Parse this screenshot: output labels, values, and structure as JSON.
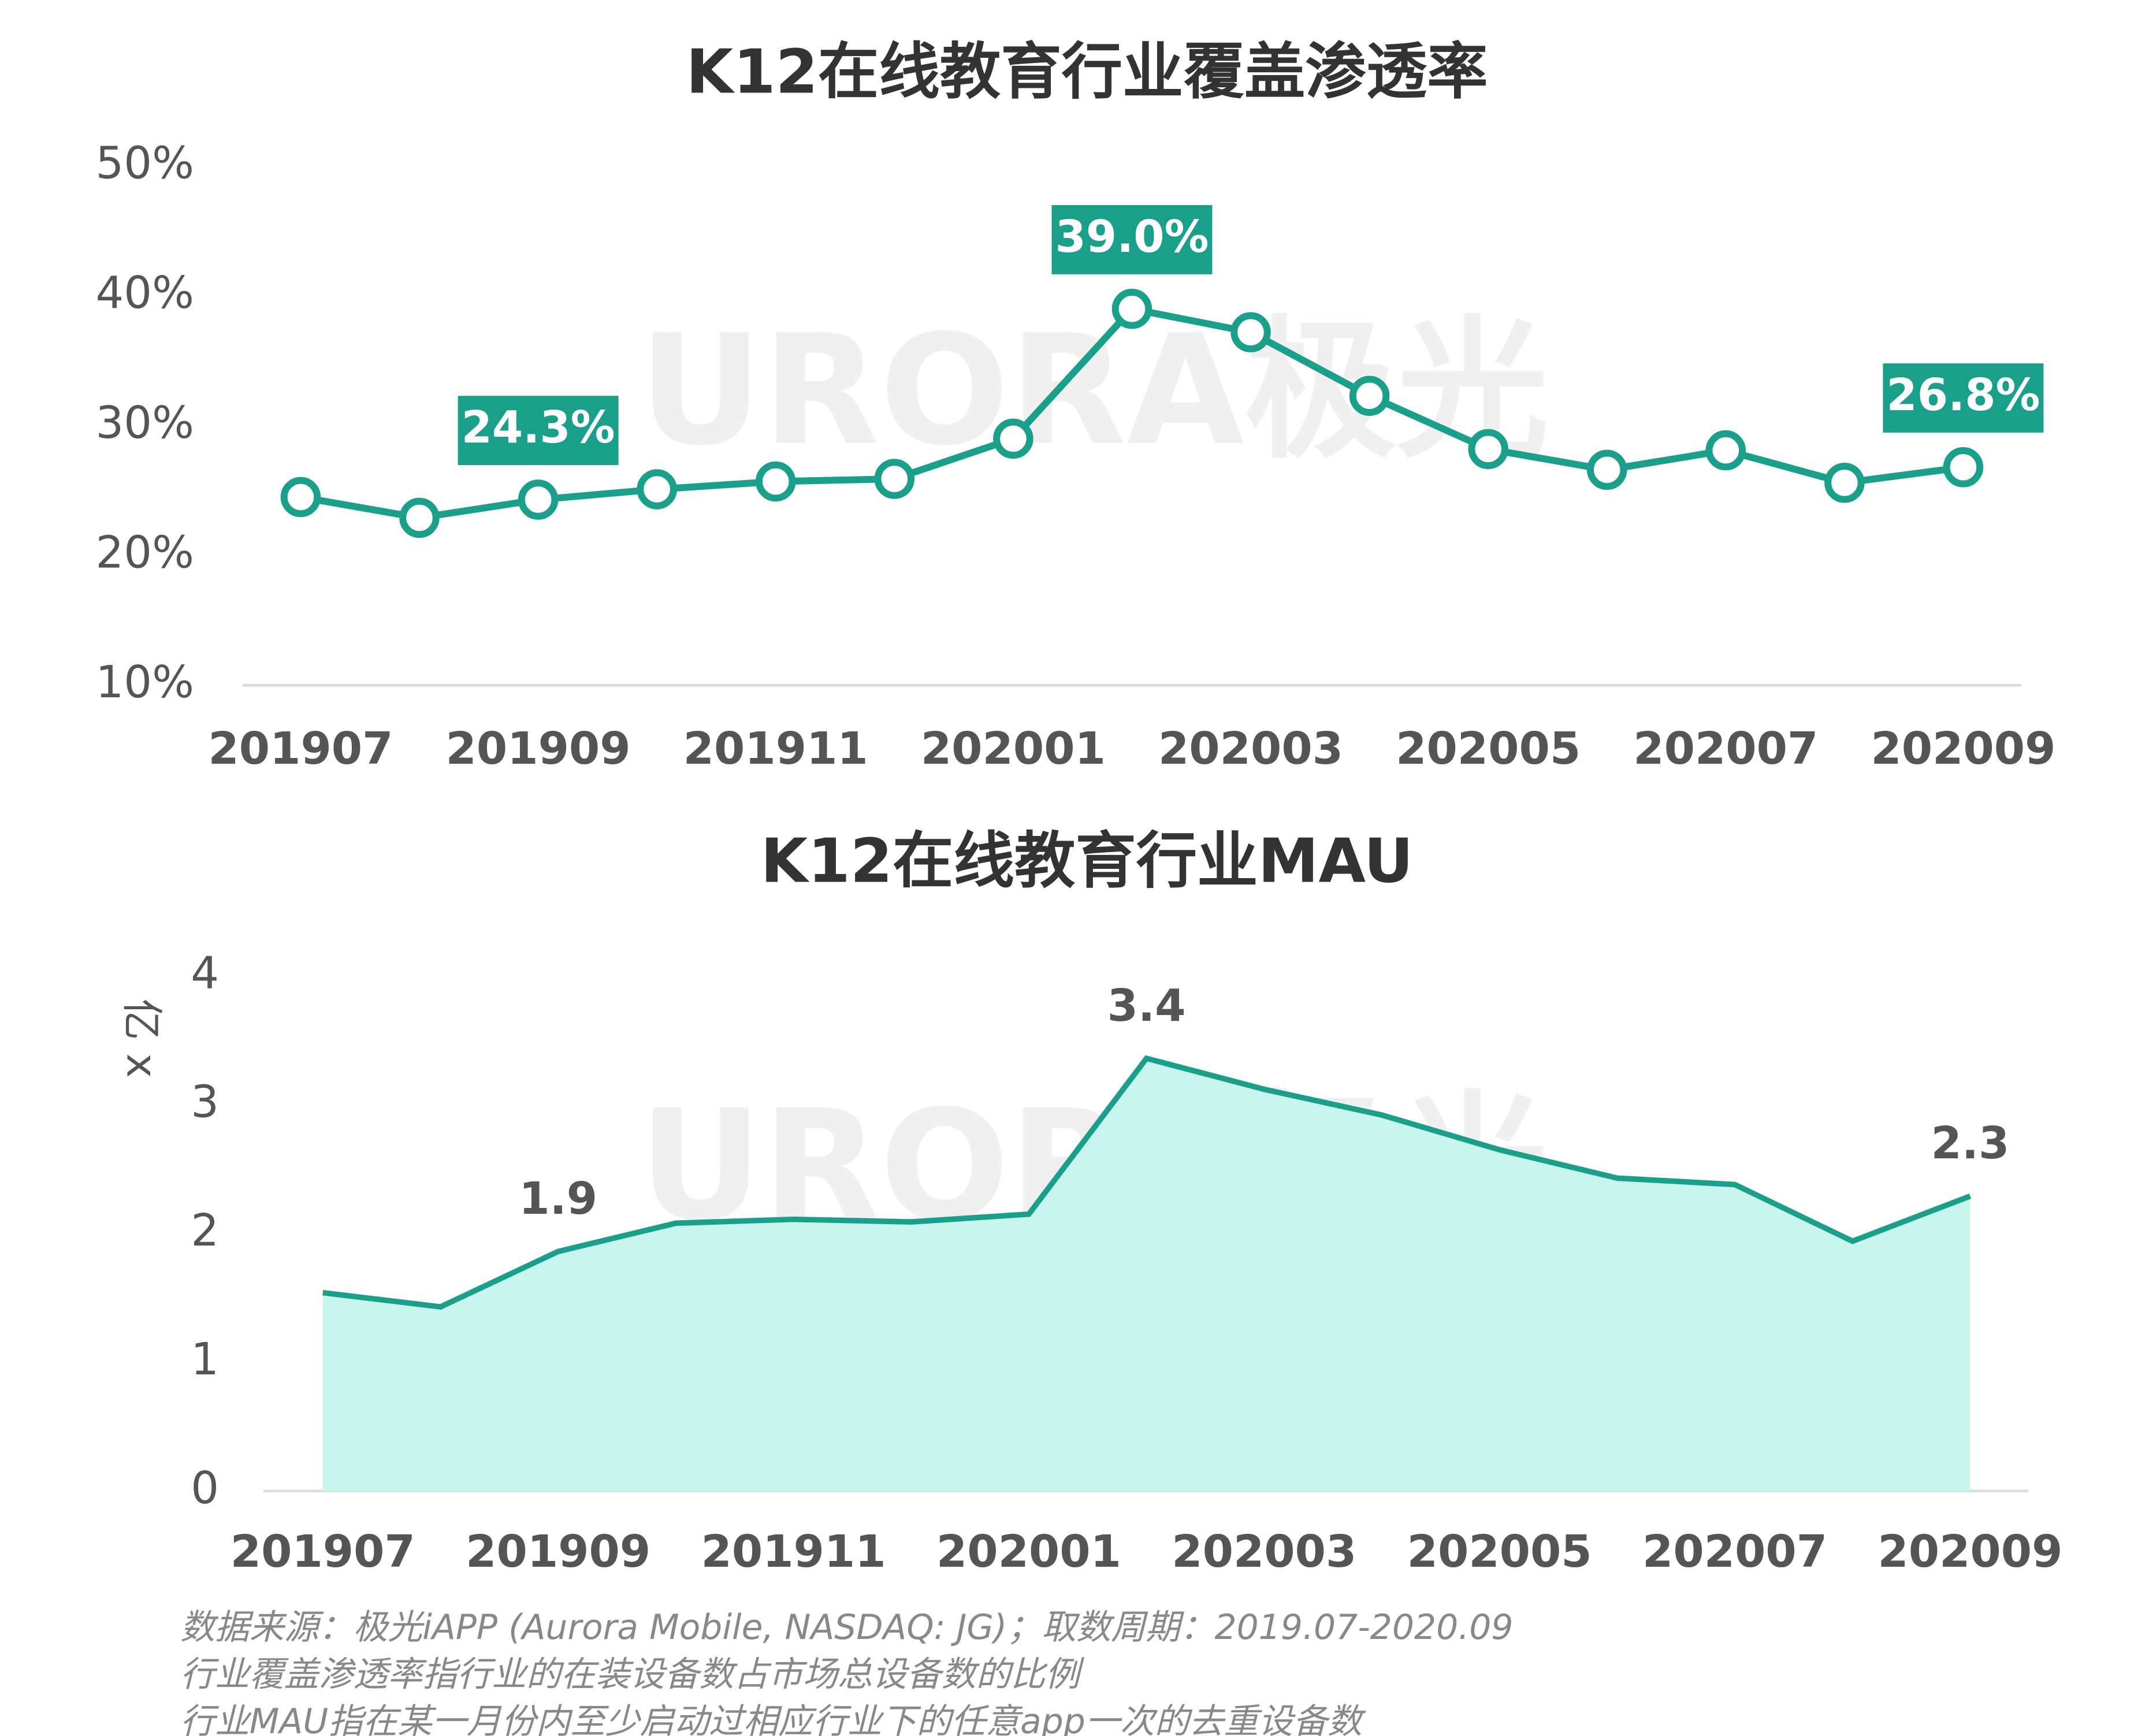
{
  "watermark": "URORA极光",
  "chart_data": [
    {
      "type": "line",
      "title": "K12在线教育行业覆盖渗透率",
      "categories": [
        "201907",
        null,
        "201909",
        null,
        "201911",
        null,
        "202001",
        null,
        "202003",
        null,
        "202005",
        null,
        "202007",
        null,
        "202009"
      ],
      "values": [
        24.5,
        22.9,
        24.3,
        25.1,
        25.7,
        25.9,
        29.0,
        39.0,
        37.2,
        32.3,
        28.2,
        26.6,
        28.1,
        25.6,
        26.8
      ],
      "value_labels": [
        null,
        null,
        "24.3%",
        null,
        null,
        null,
        null,
        "39.0%",
        null,
        null,
        null,
        null,
        null,
        null,
        "26.8%"
      ],
      "color": "#1aa08a",
      "ylim": [
        10,
        50
      ],
      "yticks": [
        {
          "value": 10,
          "label": "10%"
        },
        {
          "value": 20,
          "label": "20%"
        },
        {
          "value": 30,
          "label": "30%"
        },
        {
          "value": 40,
          "label": "40%"
        },
        {
          "value": 50,
          "label": "50%"
        }
      ],
      "grid": false
    },
    {
      "type": "area",
      "title": "K12在线教育行业MAU",
      "y_label": "亿 x",
      "categories": [
        "201907",
        null,
        "201909",
        null,
        "201911",
        null,
        "202001",
        null,
        "202003",
        null,
        "202005",
        null,
        "202007",
        null,
        "202009"
      ],
      "values": [
        1.54,
        1.43,
        1.86,
        2.08,
        2.11,
        2.09,
        2.15,
        3.36,
        3.12,
        2.92,
        2.65,
        2.43,
        2.38,
        1.94,
        2.29
      ],
      "value_labels": [
        null,
        null,
        "1.9",
        null,
        null,
        null,
        null,
        "3.4",
        null,
        null,
        null,
        null,
        null,
        null,
        "2.3"
      ],
      "color": "#1aa08a",
      "fill": "#c8f5ee",
      "ylim": [
        0,
        4
      ],
      "yticks": [
        0,
        1,
        2,
        3,
        4
      ],
      "grid": false
    }
  ],
  "notes": [
    "数据来源：极光iAPP (Aurora Mobile, NASDAQ: JG)；取数周期：2019.07-2020.09",
    "行业覆盖渗透率指行业的在装设备数占市场总设备数的比例",
    "行业MAU指在某一月份内至少启动过相应行业下的任意app一次的去重设备数"
  ]
}
